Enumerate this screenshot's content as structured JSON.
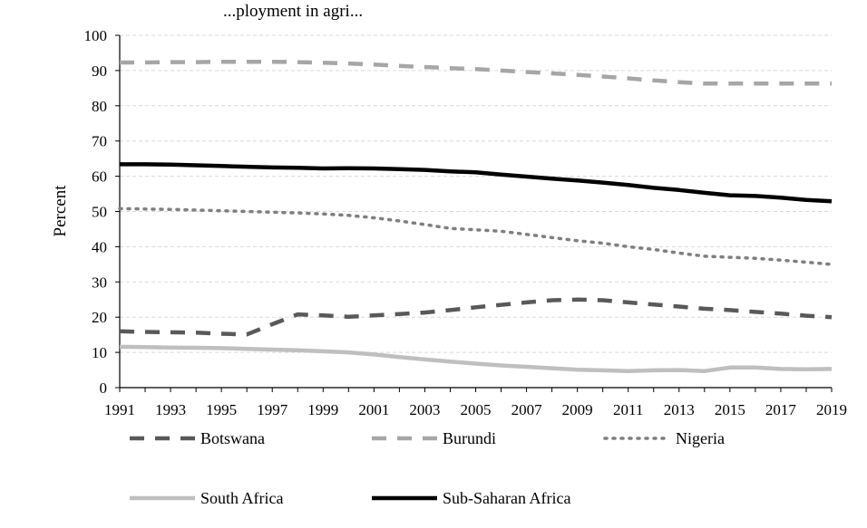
{
  "chart_data": {
    "type": "line",
    "title": "...ployment in agri...",
    "ylabel": "Percent",
    "xlabel": "",
    "ylim": [
      0,
      100
    ],
    "yticks": [
      0,
      10,
      20,
      30,
      40,
      50,
      60,
      70,
      80,
      90,
      100
    ],
    "xlim": [
      1991,
      2019
    ],
    "xticks": [
      1991,
      1993,
      1995,
      1997,
      1999,
      2001,
      2003,
      2005,
      2007,
      2009,
      2011,
      2013,
      2015,
      2017,
      2019
    ],
    "grid": true,
    "legend": "bottom",
    "x": [
      1991,
      1992,
      1993,
      1994,
      1995,
      1996,
      1997,
      1998,
      1999,
      2000,
      2001,
      2002,
      2003,
      2004,
      2005,
      2006,
      2007,
      2008,
      2009,
      2010,
      2011,
      2012,
      2013,
      2014,
      2015,
      2016,
      2017,
      2018,
      2019
    ],
    "series": [
      {
        "name": "Botswana",
        "color": "#595959",
        "style": "dashed",
        "values": [
          16,
          15.8,
          15.7,
          15.6,
          15.3,
          15.1,
          18,
          20.8,
          20.5,
          20.1,
          20.5,
          20.9,
          21.3,
          22,
          22.8,
          23.5,
          24.2,
          24.8,
          25,
          24.8,
          24.2,
          23.6,
          23,
          22.4,
          22,
          21.5,
          21,
          20.4,
          20
        ]
      },
      {
        "name": "Burundi",
        "color": "#a6a6a6",
        "style": "dashed",
        "values": [
          92.3,
          92.3,
          92.4,
          92.4,
          92.5,
          92.5,
          92.5,
          92.4,
          92.2,
          92,
          91.7,
          91.3,
          91,
          90.7,
          90.4,
          90,
          89.6,
          89.2,
          88.8,
          88.3,
          87.8,
          87.2,
          86.7,
          86.3,
          86.3,
          86.3,
          86.3,
          86.3,
          86.3
        ]
      },
      {
        "name": "Nigeria",
        "color": "#7f7f7f",
        "style": "dotted",
        "values": [
          50.8,
          50.7,
          50.6,
          50.4,
          50.2,
          50,
          49.8,
          49.6,
          49.3,
          48.9,
          48.2,
          47.3,
          46.3,
          45.2,
          44.8,
          44.4,
          43.5,
          42.6,
          41.7,
          41,
          40,
          39.2,
          38.2,
          37.3,
          37,
          36.7,
          36.2,
          35.6,
          35
        ]
      },
      {
        "name": "South Africa",
        "color": "#bfbfbf",
        "style": "solid",
        "values": [
          11.6,
          11.5,
          11.4,
          11.3,
          11.2,
          11,
          10.8,
          10.6,
          10.3,
          10,
          9.4,
          8.7,
          8,
          7.4,
          6.8,
          6.3,
          5.9,
          5.5,
          5.1,
          4.9,
          4.7,
          4.9,
          5,
          4.7,
          5.7,
          5.7,
          5.3,
          5.2,
          5.3
        ]
      },
      {
        "name": "Sub-Saharan Africa",
        "color": "#000000",
        "style": "solid",
        "values": [
          63.4,
          63.4,
          63.3,
          63.1,
          62.9,
          62.7,
          62.5,
          62.4,
          62.2,
          62.3,
          62.2,
          62,
          61.8,
          61.4,
          61.1,
          60.5,
          59.9,
          59.3,
          58.8,
          58.2,
          57.5,
          56.7,
          56.1,
          55.3,
          54.6,
          54.4,
          53.9,
          53.3,
          52.9
        ]
      }
    ]
  }
}
